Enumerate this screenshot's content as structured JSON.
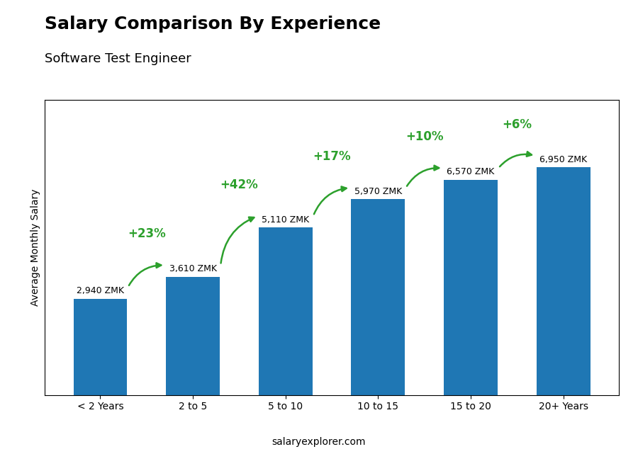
{
  "chart_data": {
    "type": "bar",
    "title": "Salary Comparison By Experience",
    "subtitle": "Software Test Engineer",
    "y_label": "Average Monthly Salary",
    "categories": [
      "< 2 Years",
      "2 to 5",
      "5 to 10",
      "10 to 15",
      "15 to 20",
      "20+ Years"
    ],
    "values": [
      2940,
      3610,
      5110,
      5970,
      6570,
      6950
    ],
    "value_labels": [
      "2,940 ZMK",
      "3,610 ZMK",
      "5,110 ZMK",
      "5,970 ZMK",
      "6,570 ZMK",
      "6,950 ZMK"
    ],
    "data_labels": true,
    "annotations": [
      "+23%",
      "+42%",
      "+17%",
      "+10%",
      "+6%"
    ],
    "footer": "salaryexplorer.com",
    "ylim": [
      0,
      9000
    ],
    "tick_labels": "x"
  }
}
